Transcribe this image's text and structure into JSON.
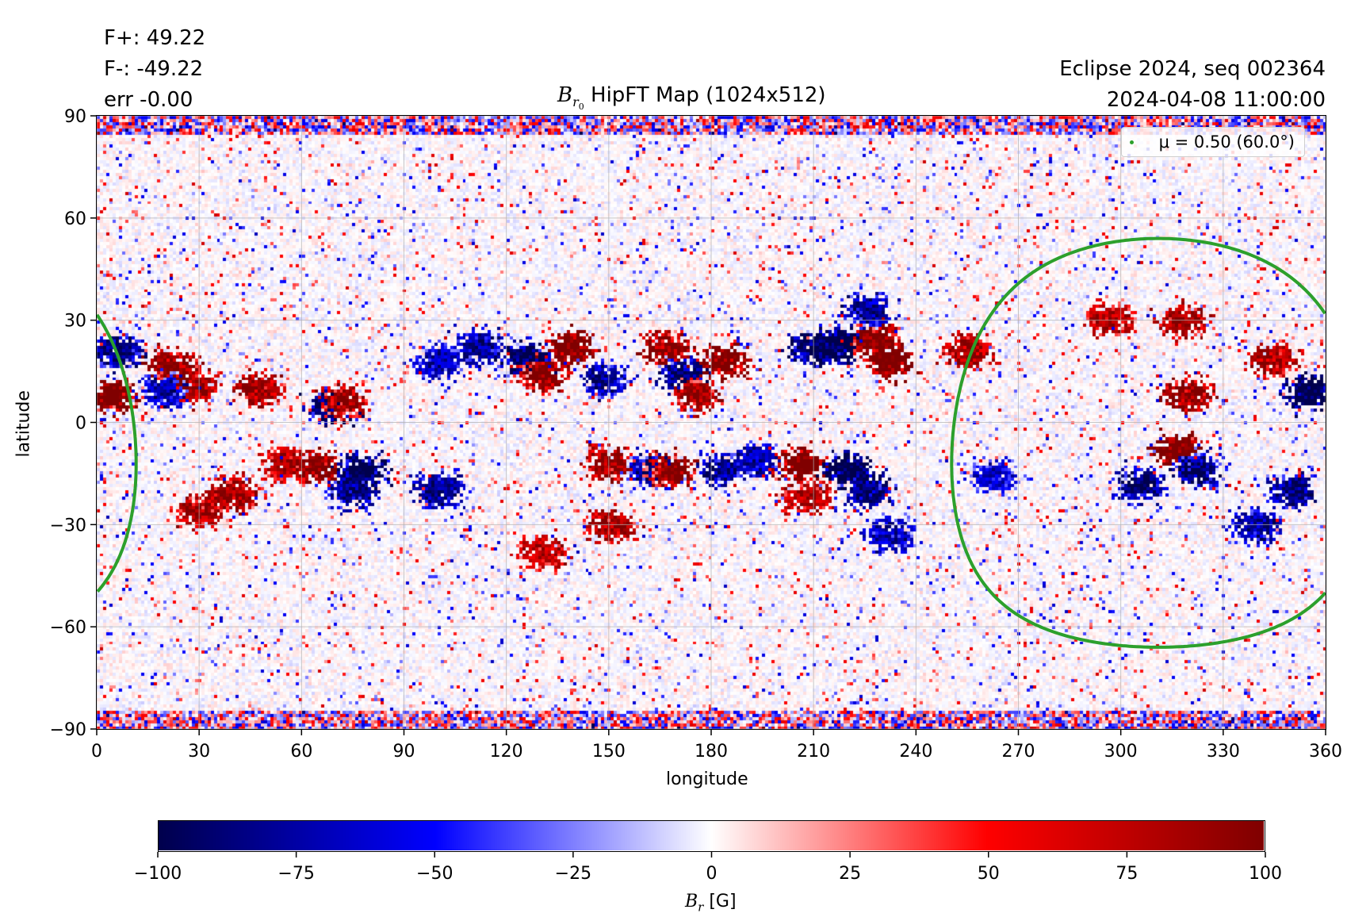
{
  "chart_data": {
    "type": "heatmap",
    "title_main": "HipFT Map (1024x512)",
    "title_symbol": "B",
    "title_subscript": "r",
    "title_subsubscript": "0",
    "stats": [
      "F+: 49.22",
      "F-: -49.22",
      "err -0.00"
    ],
    "info": [
      "Eclipse 2024, seq 002364",
      "2024-04-08 11:00:00"
    ],
    "xlabel": "longitude",
    "ylabel": "latitude",
    "xlim": [
      0,
      360
    ],
    "ylim": [
      -90,
      90
    ],
    "xticks": [
      0,
      30,
      60,
      90,
      120,
      150,
      180,
      210,
      240,
      270,
      300,
      330,
      360
    ],
    "xtick_labels": [
      "0",
      "30",
      "60",
      "90",
      "120",
      "150",
      "180",
      "210",
      "240",
      "270",
      "300",
      "330",
      "360"
    ],
    "yticks": [
      90,
      60,
      30,
      0,
      -30,
      -60,
      -90
    ],
    "ytick_labels": [
      "90",
      "60",
      "30",
      "0",
      "−30",
      "−60",
      "−90"
    ],
    "grid": true,
    "colormap": "seismic",
    "colorbar": {
      "label_symbol": "B",
      "label_subscript": "r",
      "label_unit": "[G]",
      "range": [
        -100,
        100
      ],
      "ticks": [
        -100,
        -75,
        -50,
        -25,
        0,
        25,
        50,
        75,
        100
      ],
      "tick_labels": [
        "−100",
        "−75",
        "−50",
        "−25",
        "0",
        "25",
        "50",
        "75",
        "100"
      ]
    },
    "legend": {
      "label": "μ = 0.50 (60.0°)",
      "placement": "top-right",
      "color": "#2ca02c"
    },
    "mu_contour": {
      "mu": 0.5,
      "angle_deg": 60.0,
      "center_lon": -49.0,
      "center_lat": -6.0,
      "color": "#2ca02c"
    },
    "active_regions": [
      {
        "lon": 5,
        "lat": 8,
        "B": 95
      },
      {
        "lon": 7,
        "lat": 21,
        "B": -70
      },
      {
        "lon": 22,
        "lat": 17,
        "B": 75
      },
      {
        "lon": 28,
        "lat": 11,
        "B": 70
      },
      {
        "lon": 20,
        "lat": 9,
        "B": -60
      },
      {
        "lon": 48,
        "lat": 10,
        "B": 70
      },
      {
        "lon": 40,
        "lat": -21,
        "B": 70
      },
      {
        "lon": 30,
        "lat": -26,
        "B": 65
      },
      {
        "lon": 55,
        "lat": -12,
        "B": 60
      },
      {
        "lon": 64,
        "lat": -13,
        "B": 80
      },
      {
        "lon": 69,
        "lat": 5,
        "B": -80
      },
      {
        "lon": 72,
        "lat": 6,
        "B": 70
      },
      {
        "lon": 78,
        "lat": -14,
        "B": -85
      },
      {
        "lon": 75,
        "lat": -20,
        "B": -65
      },
      {
        "lon": 100,
        "lat": -20,
        "B": -65
      },
      {
        "lon": 112,
        "lat": 22,
        "B": -60
      },
      {
        "lon": 126,
        "lat": 19,
        "B": -80
      },
      {
        "lon": 139,
        "lat": 22,
        "B": 85
      },
      {
        "lon": 130,
        "lat": 14,
        "B": 75
      },
      {
        "lon": 149,
        "lat": 13,
        "B": -60
      },
      {
        "lon": 167,
        "lat": 22,
        "B": 75
      },
      {
        "lon": 172,
        "lat": 14,
        "B": -70
      },
      {
        "lon": 184,
        "lat": 18,
        "B": 85
      },
      {
        "lon": 176,
        "lat": 8,
        "B": 70
      },
      {
        "lon": 150,
        "lat": -12,
        "B": 70
      },
      {
        "lon": 162,
        "lat": -14,
        "B": -60
      },
      {
        "lon": 168,
        "lat": -14,
        "B": 75
      },
      {
        "lon": 151,
        "lat": -30,
        "B": 65
      },
      {
        "lon": 183,
        "lat": -14,
        "B": -65
      },
      {
        "lon": 193,
        "lat": -11,
        "B": -55
      },
      {
        "lon": 206,
        "lat": -12,
        "B": 95
      },
      {
        "lon": 220,
        "lat": -14,
        "B": -95
      },
      {
        "lon": 226,
        "lat": -20,
        "B": -70
      },
      {
        "lon": 208,
        "lat": -22,
        "B": 65
      },
      {
        "lon": 218,
        "lat": 23,
        "B": -90
      },
      {
        "lon": 210,
        "lat": 22,
        "B": -80
      },
      {
        "lon": 232,
        "lat": 18,
        "B": 95
      },
      {
        "lon": 228,
        "lat": 25,
        "B": 80
      },
      {
        "lon": 226,
        "lat": 33,
        "B": -60
      },
      {
        "lon": 255,
        "lat": 21,
        "B": 70
      },
      {
        "lon": 297,
        "lat": 30,
        "B": 60
      },
      {
        "lon": 320,
        "lat": 8,
        "B": 75
      },
      {
        "lon": 318,
        "lat": 30,
        "B": 70
      },
      {
        "lon": 316,
        "lat": -8,
        "B": 90
      },
      {
        "lon": 322,
        "lat": -14,
        "B": -75
      },
      {
        "lon": 306,
        "lat": -18,
        "B": -70
      },
      {
        "lon": 345,
        "lat": 18,
        "B": 65
      },
      {
        "lon": 355,
        "lat": 9,
        "B": -95
      },
      {
        "lon": 350,
        "lat": -20,
        "B": -70
      },
      {
        "lon": 340,
        "lat": -30,
        "B": -60
      },
      {
        "lon": 232,
        "lat": -33,
        "B": -55
      },
      {
        "lon": 130,
        "lat": -38,
        "B": 60
      },
      {
        "lon": 100,
        "lat": 18,
        "B": -55
      },
      {
        "lon": 262,
        "lat": -16,
        "B": -50
      }
    ]
  }
}
